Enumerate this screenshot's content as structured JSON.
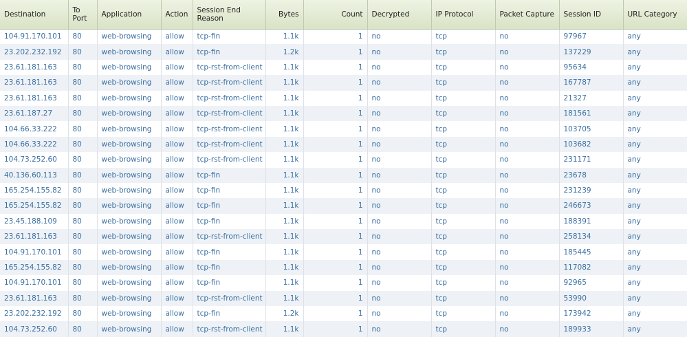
{
  "table": {
    "headers": [
      "Destination",
      "To Port",
      "Application",
      "Action",
      "Session End Reason",
      "Bytes",
      "Count",
      "Decrypted",
      "IP Protocol",
      "Packet Capture",
      "Session ID",
      "URL Category"
    ],
    "rows": [
      [
        "104.91.170.101",
        "80",
        "web-browsing",
        "allow",
        "tcp-fin",
        "1.1k",
        "1",
        "no",
        "tcp",
        "no",
        "97967",
        "any"
      ],
      [
        "23.202.232.192",
        "80",
        "web-browsing",
        "allow",
        "tcp-fin",
        "1.2k",
        "1",
        "no",
        "tcp",
        "no",
        "137229",
        "any"
      ],
      [
        "23.61.181.163",
        "80",
        "web-browsing",
        "allow",
        "tcp-rst-from-client",
        "1.1k",
        "1",
        "no",
        "tcp",
        "no",
        "95634",
        "any"
      ],
      [
        "23.61.181.163",
        "80",
        "web-browsing",
        "allow",
        "tcp-rst-from-client",
        "1.1k",
        "1",
        "no",
        "tcp",
        "no",
        "167787",
        "any"
      ],
      [
        "23.61.181.163",
        "80",
        "web-browsing",
        "allow",
        "tcp-rst-from-client",
        "1.1k",
        "1",
        "no",
        "tcp",
        "no",
        "21327",
        "any"
      ],
      [
        "23.61.187.27",
        "80",
        "web-browsing",
        "allow",
        "tcp-rst-from-client",
        "1.1k",
        "1",
        "no",
        "tcp",
        "no",
        "181561",
        "any"
      ],
      [
        "104.66.33.222",
        "80",
        "web-browsing",
        "allow",
        "tcp-rst-from-client",
        "1.1k",
        "1",
        "no",
        "tcp",
        "no",
        "103705",
        "any"
      ],
      [
        "104.66.33.222",
        "80",
        "web-browsing",
        "allow",
        "tcp-rst-from-client",
        "1.1k",
        "1",
        "no",
        "tcp",
        "no",
        "103682",
        "any"
      ],
      [
        "104.73.252.60",
        "80",
        "web-browsing",
        "allow",
        "tcp-rst-from-client",
        "1.1k",
        "1",
        "no",
        "tcp",
        "no",
        "231171",
        "any"
      ],
      [
        "40.136.60.113",
        "80",
        "web-browsing",
        "allow",
        "tcp-fin",
        "1.1k",
        "1",
        "no",
        "tcp",
        "no",
        "23678",
        "any"
      ],
      [
        "165.254.155.82",
        "80",
        "web-browsing",
        "allow",
        "tcp-fin",
        "1.1k",
        "1",
        "no",
        "tcp",
        "no",
        "231239",
        "any"
      ],
      [
        "165.254.155.82",
        "80",
        "web-browsing",
        "allow",
        "tcp-fin",
        "1.1k",
        "1",
        "no",
        "tcp",
        "no",
        "246673",
        "any"
      ],
      [
        "23.45.188.109",
        "80",
        "web-browsing",
        "allow",
        "tcp-fin",
        "1.1k",
        "1",
        "no",
        "tcp",
        "no",
        "188391",
        "any"
      ],
      [
        "23.61.181.163",
        "80",
        "web-browsing",
        "allow",
        "tcp-rst-from-client",
        "1.1k",
        "1",
        "no",
        "tcp",
        "no",
        "258134",
        "any"
      ],
      [
        "104.91.170.101",
        "80",
        "web-browsing",
        "allow",
        "tcp-fin",
        "1.1k",
        "1",
        "no",
        "tcp",
        "no",
        "185445",
        "any"
      ],
      [
        "165.254.155.82",
        "80",
        "web-browsing",
        "allow",
        "tcp-fin",
        "1.1k",
        "1",
        "no",
        "tcp",
        "no",
        "117082",
        "any"
      ],
      [
        "104.91.170.101",
        "80",
        "web-browsing",
        "allow",
        "tcp-fin",
        "1.1k",
        "1",
        "no",
        "tcp",
        "no",
        "92965",
        "any"
      ],
      [
        "23.61.181.163",
        "80",
        "web-browsing",
        "allow",
        "tcp-rst-from-client",
        "1.1k",
        "1",
        "no",
        "tcp",
        "no",
        "53990",
        "any"
      ],
      [
        "23.202.232.192",
        "80",
        "web-browsing",
        "allow",
        "tcp-fin",
        "1.2k",
        "1",
        "no",
        "tcp",
        "no",
        "173942",
        "any"
      ],
      [
        "104.73.252.60",
        "80",
        "web-browsing",
        "allow",
        "tcp-rst-from-client",
        "1.1k",
        "1",
        "no",
        "tcp",
        "no",
        "189933",
        "any"
      ]
    ]
  }
}
